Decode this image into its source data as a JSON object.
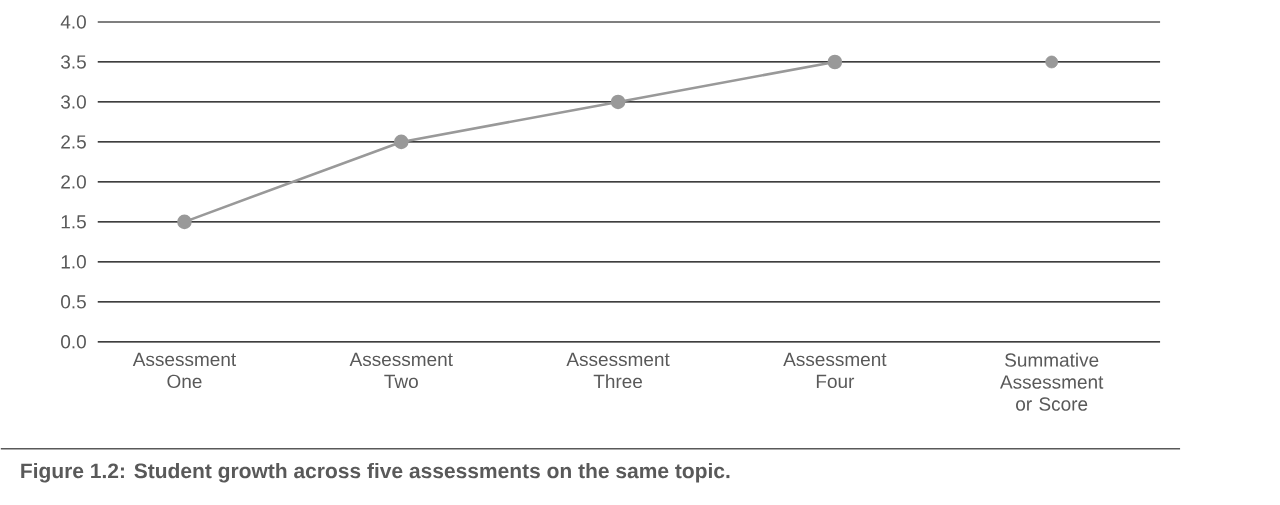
{
  "chart_data": {
    "type": "line",
    "categories": [
      "Assessment One",
      "Assessment Two",
      "Assessment Three",
      "Assessment Four",
      "Summative Assessment or Score"
    ],
    "series": [
      {
        "color": "#999999",
        "values": [
          1.5,
          2.5,
          3.0,
          3.5,
          null
        ]
      },
      {
        "type": "scatter",
        "color": "#999999",
        "values": [
          null,
          null,
          null,
          null,
          3.5
        ]
      }
    ],
    "ylim": [
      0,
      4
    ],
    "yticks": [
      {
        "value": 0,
        "label": "0.0"
      },
      0.5,
      {
        "value": 1,
        "label": "1.0"
      },
      1.5,
      {
        "value": 2,
        "label": "2.0"
      },
      2.5,
      {
        "value": 3,
        "label": "3.0"
      },
      3.5,
      {
        "value": 4,
        "label": "4.0"
      }
    ],
    "grid": "y",
    "marker": "circle",
    "line_style": "solid",
    "annotations": [
      "Figure 1.2: Student growth across five assessments on the same topic."
    ]
  }
}
